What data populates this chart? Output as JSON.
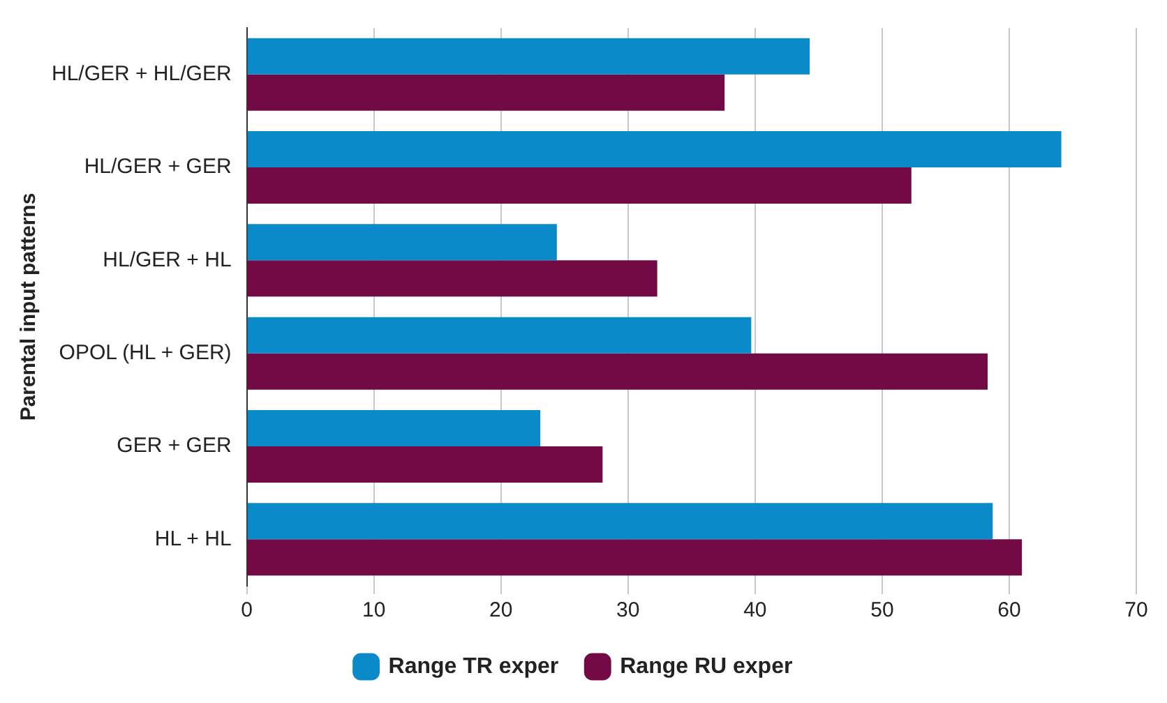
{
  "chart_data": {
    "type": "bar",
    "orientation": "horizontal",
    "ylabel": "Parental input patterns",
    "categories": [
      "HL/GER + HL/GER",
      "HL/GER + GER",
      "HL/GER + HL",
      "OPOL (HL + GER)",
      "GER + GER",
      "HL + HL"
    ],
    "series": [
      {
        "name": "Range TR exper",
        "color": "#0a8ac8",
        "values": [
          44.3,
          64.1,
          24.4,
          39.7,
          23.1,
          58.7
        ]
      },
      {
        "name": "Range RU exper",
        "color": "#730a45",
        "values": [
          37.6,
          52.3,
          32.3,
          58.3,
          28.0,
          61.0
        ]
      }
    ],
    "xlim": [
      0,
      70
    ],
    "xticks": [
      0,
      10,
      20,
      30,
      40,
      50,
      60,
      70
    ],
    "grid": "x",
    "legend": "bottom"
  }
}
